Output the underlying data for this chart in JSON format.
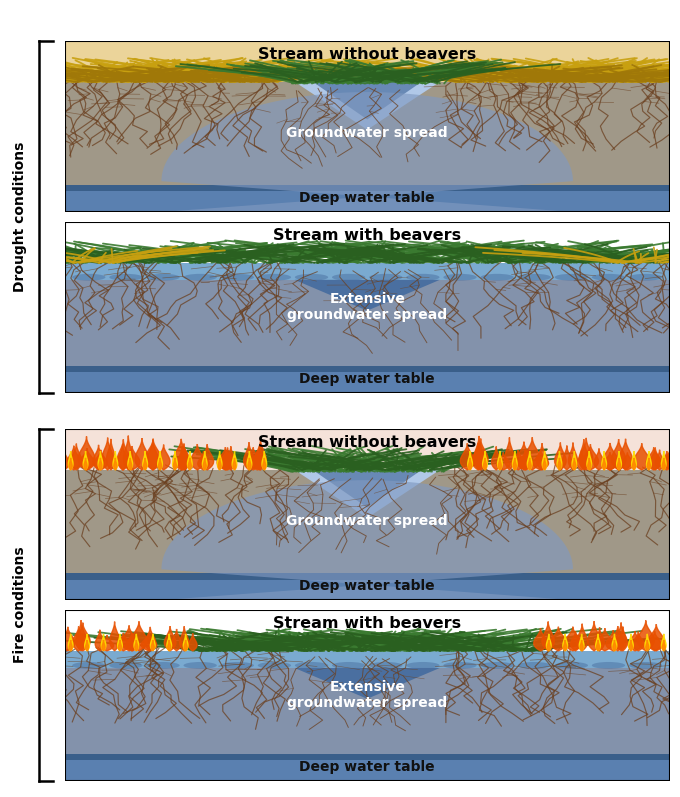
{
  "panels": [
    {
      "title": "Stream without beavers",
      "condition": "drought",
      "has_beavers": false,
      "groundwater_label": "Groundwater spread",
      "deep_water_label": "Deep water table"
    },
    {
      "title": "Stream with beavers",
      "condition": "drought",
      "has_beavers": true,
      "groundwater_label": "Extensive\ngroundwater spread",
      "deep_water_label": "Deep water table"
    },
    {
      "title": "Stream without beavers",
      "condition": "fire",
      "has_beavers": false,
      "groundwater_label": "Groundwater spread",
      "deep_water_label": "Deep water table"
    },
    {
      "title": "Stream with beavers",
      "condition": "fire",
      "has_beavers": true,
      "groundwater_label": "Extensive\ngroundwater spread",
      "deep_water_label": "Deep water table"
    }
  ],
  "drought_label": "Drought conditions",
  "fire_label": "Fire conditions",
  "colors": {
    "soil_gray": "#a09888",
    "deep_water_dark": "#3a5f8a",
    "deep_water_light": "#5a80b0",
    "groundwater_dome": "#8099c0",
    "groundwater_dome_alpha": 0.65,
    "stream_water_light": "#b0c8e8",
    "stream_water_dark": "#4a6fa0",
    "beaver_pond_top": "#7aaad0",
    "beaver_pond_body": "#6890b8",
    "gw_extensive": "#7a90b8",
    "grass_green_dark": "#2a6020",
    "grass_green_mid": "#3a7a30",
    "grass_yellow": "#c8a010",
    "grass_yellow_dark": "#a07808",
    "fire_base": "#e85000",
    "fire_mid": "#ff8800",
    "fire_tip": "#ffdd00",
    "background": "#ffffff",
    "root_color": "#6b4020",
    "title_color": "#000000",
    "label_white": "#ffffff",
    "label_dark": "#111111"
  }
}
